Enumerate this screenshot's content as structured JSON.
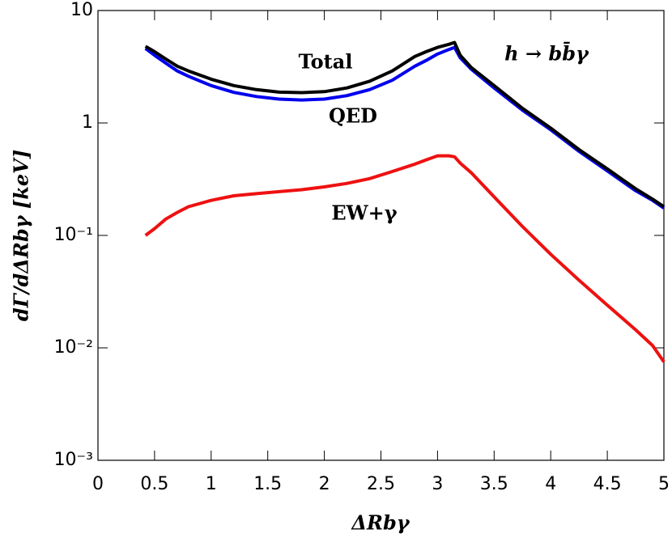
{
  "chart_data": {
    "type": "line",
    "xlabel": "ΔRbγ",
    "ylabel": "dΓ/dΔRbγ [keV]",
    "annotations": [
      "Total",
      "QED",
      "EW+γ",
      "h → bb̄γ"
    ],
    "log_y": true,
    "x": [
      0.42,
      0.5,
      0.6,
      0.7,
      0.8,
      1.0,
      1.2,
      1.4,
      1.6,
      1.8,
      2.0,
      2.2,
      2.4,
      2.6,
      2.8,
      2.9,
      3.0,
      3.1,
      3.15,
      3.2,
      3.3,
      3.5,
      3.75,
      4.0,
      4.25,
      4.5,
      4.75,
      4.9,
      5.0
    ],
    "series": [
      {
        "name": "Total",
        "color": "#000000",
        "values": [
          4.8,
          4.3,
          3.7,
          3.2,
          2.9,
          2.45,
          2.15,
          1.98,
          1.88,
          1.86,
          1.9,
          2.05,
          2.35,
          2.9,
          3.9,
          4.3,
          4.7,
          5.0,
          5.2,
          4.0,
          3.1,
          2.15,
          1.35,
          0.9,
          0.58,
          0.39,
          0.26,
          0.21,
          0.18
        ]
      },
      {
        "name": "QED",
        "color": "#0000ee",
        "values": [
          4.6,
          4.0,
          3.4,
          2.9,
          2.6,
          2.15,
          1.87,
          1.72,
          1.63,
          1.6,
          1.63,
          1.75,
          1.98,
          2.4,
          3.2,
          3.6,
          4.1,
          4.5,
          4.7,
          3.8,
          3.0,
          2.05,
          1.3,
          0.87,
          0.56,
          0.375,
          0.25,
          0.205,
          0.175
        ]
      },
      {
        "name": "EW+γ",
        "color": "#ee1111",
        "values": [
          0.1,
          0.115,
          0.14,
          0.16,
          0.18,
          0.205,
          0.225,
          0.235,
          0.245,
          0.255,
          0.27,
          0.29,
          0.32,
          0.37,
          0.43,
          0.47,
          0.51,
          0.51,
          0.5,
          0.44,
          0.36,
          0.22,
          0.12,
          0.068,
          0.04,
          0.024,
          0.0145,
          0.0105,
          0.0075
        ]
      }
    ],
    "xlim": [
      0,
      5
    ],
    "xticks": [
      0,
      0.5,
      1,
      1.5,
      2,
      2.5,
      3,
      3.5,
      4,
      4.5,
      5
    ],
    "ylim": [
      0.001,
      10
    ],
    "yticks": [
      {
        "value": 0.001,
        "label": "10⁻³"
      },
      {
        "value": 0.01,
        "label": "10⁻²"
      },
      {
        "value": 0.1,
        "label": "10⁻¹"
      },
      1,
      10
    ]
  }
}
